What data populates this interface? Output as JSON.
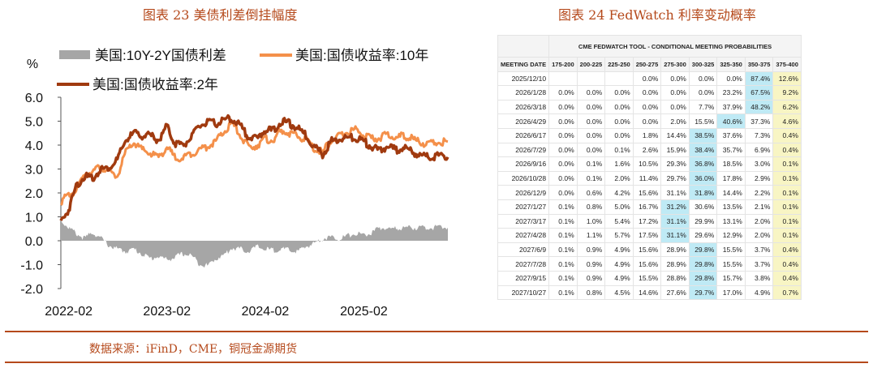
{
  "left_title": "图表 23 美债利差倒挂幅度",
  "right_title": "图表 24 FedWatch 利率变动概率",
  "source": "数据来源：iFinD，CME，铜冠金源期货",
  "chart_data": {
    "type": "line",
    "unit_label": "%",
    "yticks": [
      6.0,
      5.0,
      4.0,
      3.0,
      2.0,
      1.0,
      0.0,
      -1.0,
      -2.0
    ],
    "ytick_labels": [
      "6.0",
      "5.0",
      "4.0",
      "3.0",
      "2.0",
      "1.0",
      "0.0",
      "-1.0",
      "-2.0"
    ],
    "ylim": [
      -2.0,
      6.0
    ],
    "xticks": [
      "2022-02",
      "2023-02",
      "2024-02",
      "2025-02"
    ],
    "xlim": [
      "2022-01-03",
      "2025-12-10"
    ],
    "colors": {
      "spread": "#a6a6a6",
      "y10": "#f4904a",
      "y2": "#a03a0f"
    },
    "series": [
      {
        "key": "spread",
        "type": "area",
        "name": "美国:10Y-2Y国债利差",
        "x": [
          "2022-01-03",
          "2022-02-01",
          "2022-03-01",
          "2022-04-01",
          "2022-05-01",
          "2022-06-01",
          "2022-07-01",
          "2022-08-01",
          "2022-09-01",
          "2022-10-01",
          "2022-11-01",
          "2022-12-01",
          "2023-01-01",
          "2023-02-01",
          "2023-03-01",
          "2023-04-01",
          "2023-05-01",
          "2023-06-01",
          "2023-07-01",
          "2023-08-01",
          "2023-09-01",
          "2023-10-01",
          "2023-11-01",
          "2023-12-01",
          "2024-01-01",
          "2024-02-01",
          "2024-03-01",
          "2024-04-01",
          "2024-05-01",
          "2024-06-01",
          "2024-07-01",
          "2024-08-01",
          "2024-09-01",
          "2024-10-01",
          "2024-11-01",
          "2024-12-01",
          "2025-01-01",
          "2025-02-01",
          "2025-03-01",
          "2025-04-01",
          "2025-05-01",
          "2025-06-01",
          "2025-07-01",
          "2025-08-01",
          "2025-09-01",
          "2025-10-01",
          "2025-11-01",
          "2025-12-10"
        ],
        "values": [
          0.85,
          0.55,
          0.3,
          0.1,
          0.35,
          0.1,
          -0.2,
          -0.35,
          -0.45,
          -0.35,
          -0.55,
          -0.75,
          -0.65,
          -0.8,
          -0.7,
          -0.55,
          -0.6,
          -0.95,
          -1.05,
          -0.75,
          -0.6,
          -0.3,
          -0.35,
          -0.45,
          -0.25,
          -0.35,
          -0.4,
          -0.35,
          -0.4,
          -0.45,
          -0.25,
          -0.1,
          0.1,
          0.15,
          0.1,
          0.2,
          0.3,
          0.25,
          0.3,
          0.55,
          0.5,
          0.5,
          0.55,
          0.55,
          0.55,
          0.55,
          0.55,
          0.55
        ]
      },
      {
        "key": "y10",
        "type": "line",
        "name": "美国:国债收益率:10年",
        "x": [
          "2022-01-03",
          "2022-02-01",
          "2022-03-01",
          "2022-04-01",
          "2022-05-01",
          "2022-06-01",
          "2022-07-01",
          "2022-08-01",
          "2022-09-01",
          "2022-10-01",
          "2022-11-01",
          "2022-12-01",
          "2023-01-01",
          "2023-02-01",
          "2023-03-01",
          "2023-04-01",
          "2023-05-01",
          "2023-06-01",
          "2023-07-01",
          "2023-08-01",
          "2023-09-01",
          "2023-10-01",
          "2023-11-01",
          "2023-12-01",
          "2024-01-01",
          "2024-02-01",
          "2024-03-01",
          "2024-04-01",
          "2024-05-01",
          "2024-06-01",
          "2024-07-01",
          "2024-08-01",
          "2024-09-01",
          "2024-10-01",
          "2024-11-01",
          "2024-12-01",
          "2025-01-01",
          "2025-02-01",
          "2025-03-01",
          "2025-04-01",
          "2025-05-01",
          "2025-06-01",
          "2025-07-01",
          "2025-08-01",
          "2025-09-01",
          "2025-10-01",
          "2025-11-01",
          "2025-12-10"
        ],
        "values": [
          1.65,
          1.9,
          2.1,
          2.8,
          2.9,
          3.1,
          2.85,
          2.7,
          3.7,
          4.1,
          3.8,
          3.65,
          3.5,
          3.9,
          3.5,
          3.45,
          3.65,
          3.8,
          3.95,
          4.15,
          4.55,
          4.9,
          4.4,
          3.9,
          4.0,
          4.25,
          4.2,
          4.6,
          4.5,
          4.35,
          4.25,
          3.85,
          3.7,
          4.2,
          4.35,
          4.55,
          4.65,
          4.4,
          4.25,
          4.3,
          4.45,
          4.3,
          4.4,
          4.25,
          4.1,
          4.05,
          4.1,
          4.15
        ]
      },
      {
        "key": "y2",
        "type": "line",
        "name": "美国:国债收益率:2年",
        "x": [
          "2022-01-03",
          "2022-02-01",
          "2022-03-01",
          "2022-04-01",
          "2022-05-01",
          "2022-06-01",
          "2022-07-01",
          "2022-08-01",
          "2022-09-01",
          "2022-10-01",
          "2022-11-01",
          "2022-12-01",
          "2023-01-01",
          "2023-02-01",
          "2023-03-01",
          "2023-04-01",
          "2023-05-01",
          "2023-06-01",
          "2023-07-01",
          "2023-08-01",
          "2023-09-01",
          "2023-10-01",
          "2023-11-01",
          "2023-12-01",
          "2024-01-01",
          "2024-02-01",
          "2024-03-01",
          "2024-04-01",
          "2024-05-01",
          "2024-06-01",
          "2024-07-01",
          "2024-08-01",
          "2024-09-01",
          "2024-10-01",
          "2024-11-01",
          "2024-12-01",
          "2025-01-01",
          "2025-02-01",
          "2025-03-01",
          "2025-04-01",
          "2025-05-01",
          "2025-06-01",
          "2025-07-01",
          "2025-08-01",
          "2025-09-01",
          "2025-10-01",
          "2025-11-01",
          "2025-12-10"
        ],
        "values": [
          0.8,
          1.3,
          2.3,
          2.7,
          2.6,
          3.0,
          3.05,
          3.4,
          4.2,
          4.5,
          4.4,
          4.4,
          4.2,
          4.8,
          4.1,
          4.0,
          4.3,
          4.8,
          4.95,
          4.9,
          5.05,
          5.1,
          4.8,
          4.35,
          4.25,
          4.65,
          4.6,
          5.0,
          4.9,
          4.7,
          4.4,
          3.95,
          3.6,
          4.15,
          4.25,
          4.3,
          4.3,
          4.15,
          3.95,
          3.75,
          3.95,
          3.8,
          3.9,
          3.7,
          3.55,
          3.5,
          3.55,
          3.5
        ]
      }
    ]
  },
  "table": {
    "tool_title": "CME FEDWATCH TOOL - CONDITIONAL MEETING PROBABILITIES",
    "date_header": "MEETING DATE",
    "columns": [
      "175-200",
      "200-225",
      "225-250",
      "250-275",
      "275-300",
      "300-325",
      "325-350",
      "350-375",
      "375-400"
    ],
    "rows": [
      {
        "date": "2025/12/10",
        "cells": [
          "",
          "",
          "",
          "0.0%",
          "0.0%",
          "0.0%",
          "0.0%",
          "87.4%",
          "12.6%"
        ],
        "blue": 7,
        "yellow": 8
      },
      {
        "date": "2026/1/28",
        "cells": [
          "0.0%",
          "0.0%",
          "0.0%",
          "0.0%",
          "0.0%",
          "0.0%",
          "23.2%",
          "67.5%",
          "9.2%"
        ],
        "blue": 7,
        "yellow": 8
      },
      {
        "date": "2026/3/18",
        "cells": [
          "0.0%",
          "0.0%",
          "0.0%",
          "0.0%",
          "0.0%",
          "7.7%",
          "37.9%",
          "48.2%",
          "6.2%"
        ],
        "blue": 7,
        "yellow": 8
      },
      {
        "date": "2026/4/29",
        "cells": [
          "0.0%",
          "0.0%",
          "0.0%",
          "0.0%",
          "2.0%",
          "15.5%",
          "40.6%",
          "37.3%",
          "4.6%"
        ],
        "blue": 6,
        "yellow": 8
      },
      {
        "date": "2026/6/17",
        "cells": [
          "0.0%",
          "0.0%",
          "0.0%",
          "1.8%",
          "14.4%",
          "38.5%",
          "37.6%",
          "7.3%",
          "0.4%"
        ],
        "blue": 5,
        "yellow": 8
      },
      {
        "date": "2026/7/29",
        "cells": [
          "0.0%",
          "0.0%",
          "0.1%",
          "2.6%",
          "15.9%",
          "38.4%",
          "35.7%",
          "6.9%",
          "0.4%"
        ],
        "blue": 5,
        "yellow": 8
      },
      {
        "date": "2026/9/16",
        "cells": [
          "0.0%",
          "0.1%",
          "1.6%",
          "10.5%",
          "29.3%",
          "36.8%",
          "18.5%",
          "3.0%",
          "0.1%"
        ],
        "blue": 5,
        "yellow": 8
      },
      {
        "date": "2026/10/28",
        "cells": [
          "0.0%",
          "0.1%",
          "2.0%",
          "11.4%",
          "29.7%",
          "36.0%",
          "17.8%",
          "2.9%",
          "0.1%"
        ],
        "blue": 5,
        "yellow": 8
      },
      {
        "date": "2026/12/9",
        "cells": [
          "0.0%",
          "0.6%",
          "4.2%",
          "15.6%",
          "31.1%",
          "31.8%",
          "14.4%",
          "2.2%",
          "0.1%"
        ],
        "blue": 5,
        "yellow": 8
      },
      {
        "date": "2027/1/27",
        "cells": [
          "0.1%",
          "0.8%",
          "5.0%",
          "16.7%",
          "31.2%",
          "30.6%",
          "13.5%",
          "2.1%",
          "0.1%"
        ],
        "blue": 4,
        "yellow": 8
      },
      {
        "date": "2027/3/17",
        "cells": [
          "0.1%",
          "1.0%",
          "5.4%",
          "17.2%",
          "31.1%",
          "29.9%",
          "13.1%",
          "2.0%",
          "0.1%"
        ],
        "blue": 4,
        "yellow": 8
      },
      {
        "date": "2027/4/28",
        "cells": [
          "0.1%",
          "1.1%",
          "5.7%",
          "17.5%",
          "31.1%",
          "29.6%",
          "12.9%",
          "2.0%",
          "0.1%"
        ],
        "blue": 4,
        "yellow": 8
      },
      {
        "date": "2027/6/9",
        "cells": [
          "0.1%",
          "0.9%",
          "4.9%",
          "15.6%",
          "28.9%",
          "29.8%",
          "15.5%",
          "3.7%",
          "0.4%"
        ],
        "blue": 5,
        "yellow": 8
      },
      {
        "date": "2027/7/28",
        "cells": [
          "0.1%",
          "0.9%",
          "4.9%",
          "15.6%",
          "28.9%",
          "29.8%",
          "15.5%",
          "3.7%",
          "0.4%"
        ],
        "blue": 5,
        "yellow": 8
      },
      {
        "date": "2027/9/15",
        "cells": [
          "0.1%",
          "0.9%",
          "4.9%",
          "15.5%",
          "28.8%",
          "29.8%",
          "15.7%",
          "3.8%",
          "0.4%"
        ],
        "blue": 5,
        "yellow": 8
      },
      {
        "date": "2027/10/27",
        "cells": [
          "0.1%",
          "0.8%",
          "4.5%",
          "14.6%",
          "27.6%",
          "29.7%",
          "17.0%",
          "4.9%",
          "0.7%"
        ],
        "blue": 5,
        "yellow": 8
      }
    ]
  }
}
